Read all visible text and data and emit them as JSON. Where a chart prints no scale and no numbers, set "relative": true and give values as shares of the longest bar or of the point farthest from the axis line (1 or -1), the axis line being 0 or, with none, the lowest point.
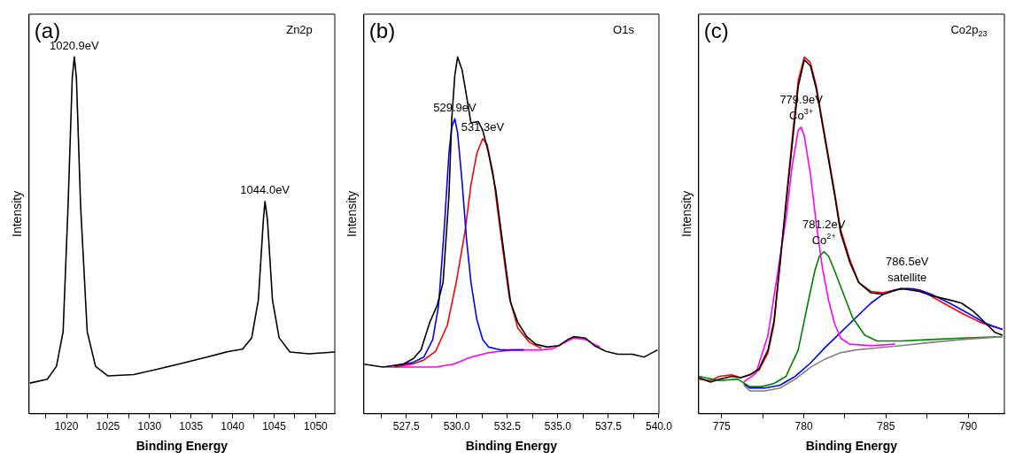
{
  "chart_data": [
    {
      "type": "line",
      "relative": true,
      "title": "Zn2p",
      "xlabel": "Binding Energy",
      "ylabel": "Intensity",
      "tick_labels": "x",
      "grid": false,
      "legend": false,
      "marker": "none",
      "line_style": "solid",
      "xlim": [
        1015.5,
        1052.3
      ],
      "xticks": [
        {
          "value": 1017.5,
          "label": null
        },
        1020,
        {
          "value": 1022.5,
          "label": null
        },
        1025,
        {
          "value": 1027.5,
          "label": null
        },
        1030,
        {
          "value": 1032.5,
          "label": null
        },
        1035,
        {
          "value": 1037.5,
          "label": null
        },
        1040,
        {
          "value": 1042.5,
          "label": null
        },
        1045,
        {
          "value": 1047.5,
          "label": null
        },
        1050
      ],
      "annotations": [
        "(a)",
        {
          "text": "1020.9eV",
          "x": 1020.95,
          "y": 1.0
        },
        {
          "text": "1044.0eV",
          "x": 1043.9,
          "y": 0.595
        }
      ],
      "series": [
        {
          "color": "#000000",
          "x": [
            1015.6,
            1017.7,
            1018.8,
            1019.6,
            1020.2,
            1020.7,
            1020.95,
            1021.2,
            1021.7,
            1022.5,
            1023.5,
            1025.0,
            1028.1,
            1030.8,
            1033.8,
            1036.9,
            1039.6,
            1041.2,
            1042.3,
            1043.1,
            1043.7,
            1043.9,
            1044.2,
            1044.8,
            1045.6,
            1046.9,
            1049.2,
            1052.3
          ],
          "values": [
            0.086,
            0.097,
            0.133,
            0.23,
            0.586,
            0.942,
            1.0,
            0.942,
            0.586,
            0.23,
            0.133,
            0.106,
            0.11,
            0.124,
            0.141,
            0.159,
            0.175,
            0.181,
            0.213,
            0.319,
            0.542,
            0.595,
            0.542,
            0.319,
            0.213,
            0.173,
            0.168,
            0.173
          ]
        }
      ]
    },
    {
      "type": "line",
      "relative": true,
      "title": "O1s",
      "xlabel": "Binding Energy",
      "ylabel": "Intensity",
      "tick_labels": "x",
      "grid": false,
      "legend": false,
      "marker": "none",
      "line_style": "solid",
      "xlim": [
        525.4,
        540
      ],
      "xticks": [
        {
          "value": 526.25,
          "label": null
        },
        {
          "value": 527.5,
          "label": "527.5"
        },
        {
          "value": 528.75,
          "label": null
        },
        {
          "value": 530,
          "label": "530.0"
        },
        {
          "value": 531.25,
          "label": null
        },
        {
          "value": 532.5,
          "label": "532.5"
        },
        {
          "value": 533.75,
          "label": null
        },
        {
          "value": 535,
          "label": "535.0"
        },
        {
          "value": 536.25,
          "label": null
        },
        {
          "value": 537.5,
          "label": "537.5"
        },
        {
          "value": 538.75,
          "label": null
        },
        {
          "value": 540,
          "label": "540.0"
        }
      ],
      "annotations": [
        "(b)",
        {
          "text": "529.9eV",
          "x": 529.9,
          "y": 0.827
        },
        {
          "text": "531.3eV",
          "x": 531.28,
          "y": 0.771
        }
      ],
      "series": [
        {
          "color": "#000000",
          "x": [
            525.42,
            526.34,
            527.35,
            527.86,
            528.23,
            528.66,
            529.03,
            529.32,
            529.61,
            529.75,
            529.9,
            530.04,
            530.26,
            530.48,
            530.7,
            531.06,
            531.28,
            531.57,
            531.93,
            532.3,
            532.66,
            533.02,
            533.46,
            533.9,
            534.48,
            535.06,
            535.49,
            535.78,
            536.37,
            536.8,
            537.38,
            537.97,
            538.69,
            539.27,
            539.93
          ],
          "values": [
            0.139,
            0.131,
            0.139,
            0.155,
            0.179,
            0.256,
            0.304,
            0.368,
            0.61,
            0.827,
            0.948,
            1.0,
            0.964,
            0.891,
            0.815,
            0.819,
            0.795,
            0.73,
            0.626,
            0.465,
            0.312,
            0.256,
            0.216,
            0.195,
            0.187,
            0.191,
            0.208,
            0.216,
            0.212,
            0.191,
            0.175,
            0.167,
            0.167,
            0.159,
            0.179
          ]
        },
        {
          "color": "#0000ff",
          "x": [
            526.92,
            527.79,
            528.37,
            528.81,
            529.1,
            529.39,
            529.61,
            529.75,
            529.9,
            530.04,
            530.26,
            530.48,
            530.7,
            530.99,
            531.28,
            531.57,
            532.15,
            533.31
          ],
          "values": [
            0.135,
            0.143,
            0.159,
            0.208,
            0.304,
            0.529,
            0.73,
            0.803,
            0.827,
            0.787,
            0.65,
            0.489,
            0.368,
            0.264,
            0.208,
            0.187,
            0.179,
            0.179
          ]
        },
        {
          "color": "#ff0000",
          "x": [
            526.92,
            527.79,
            528.37,
            528.95,
            529.53,
            529.97,
            530.41,
            530.7,
            530.99,
            531.28,
            531.5,
            531.79,
            532.15,
            532.59,
            533.02,
            533.6,
            534.19
          ],
          "values": [
            0.131,
            0.139,
            0.151,
            0.175,
            0.248,
            0.368,
            0.513,
            0.642,
            0.73,
            0.771,
            0.755,
            0.674,
            0.513,
            0.328,
            0.24,
            0.2,
            0.183
          ]
        },
        {
          "color": "#ff00ff",
          "x": [
            526.48,
            527.65,
            528.95,
            529.83,
            530.7,
            531.57,
            532.73,
            534.19,
            534.77,
            535.35,
            535.78,
            536.37,
            536.8,
            537.09
          ],
          "values": [
            0.131,
            0.131,
            0.131,
            0.139,
            0.159,
            0.171,
            0.179,
            0.179,
            0.183,
            0.2,
            0.212,
            0.208,
            0.195,
            0.187
          ]
        }
      ]
    },
    {
      "type": "line",
      "relative": true,
      "title": "Co2p$_{23}$",
      "xlabel": "Binding Energy",
      "ylabel": "Intensity",
      "tick_labels": "x",
      "grid": false,
      "legend": false,
      "marker": "none",
      "line_style": "solid",
      "xlim": [
        773.6,
        792.2
      ],
      "xticks": [
        775,
        {
          "value": 777.5,
          "label": null
        },
        780,
        {
          "value": 782.5,
          "label": null
        },
        785,
        {
          "value": 787.5,
          "label": null
        },
        790
      ],
      "annotations": [
        "(c)",
        {
          "text": "779.9eV\nCo$^{3+}$",
          "x": 779.84,
          "y": 0.803
        },
        {
          "text": "781.2eV\nCo$^{2+}$",
          "x": 781.22,
          "y": 0.454
        },
        {
          "text": "786.5eV\nsatellite",
          "x": 786.29,
          "y": 0.351
        }
      ],
      "series": [
        {
          "color": "#808080",
          "x": [
            776.34,
            776.71,
            777.63,
            778.55,
            779.48,
            780.4,
            781.32,
            782.24,
            783.16,
            784.08,
            785.92,
            787.76,
            789.6,
            792.09
          ],
          "values": [
            0.08,
            0.064,
            0.064,
            0.072,
            0.097,
            0.13,
            0.154,
            0.171,
            0.179,
            0.183,
            0.191,
            0.2,
            0.208,
            0.216
          ]
        },
        {
          "color": "#000000",
          "x": [
            773.62,
            774.32,
            774.87,
            775.61,
            776.16,
            776.71,
            777.27,
            777.82,
            778.19,
            778.55,
            778.92,
            779.29,
            779.66,
            780.03,
            780.4,
            780.76,
            781.13,
            781.5,
            781.87,
            782.24,
            782.79,
            783.34,
            784.08,
            784.82,
            785.92,
            787.03,
            787.76,
            788.87,
            789.6,
            790.34,
            791.08,
            791.63,
            792.09
          ],
          "values": [
            0.101,
            0.089,
            0.097,
            0.105,
            0.101,
            0.109,
            0.126,
            0.179,
            0.261,
            0.425,
            0.589,
            0.754,
            0.918,
            0.992,
            0.975,
            0.91,
            0.811,
            0.713,
            0.614,
            0.507,
            0.425,
            0.368,
            0.339,
            0.335,
            0.351,
            0.343,
            0.331,
            0.319,
            0.31,
            0.286,
            0.253,
            0.228,
            0.22
          ]
        },
        {
          "color": "#ff00ff",
          "x": [
            776.34,
            777.08,
            777.82,
            778.37,
            778.92,
            779.29,
            779.66,
            779.84,
            780.03,
            780.4,
            780.76,
            781.13,
            781.5,
            781.87,
            782.24,
            782.79,
            784.08,
            785.55
          ],
          "values": [
            0.089,
            0.113,
            0.22,
            0.384,
            0.548,
            0.696,
            0.795,
            0.803,
            0.778,
            0.672,
            0.532,
            0.409,
            0.319,
            0.253,
            0.212,
            0.195,
            0.191,
            0.195
          ]
        },
        {
          "color": "#008000",
          "x": [
            773.62,
            774.87,
            775.98,
            776.71,
            777.45,
            778.19,
            778.92,
            779.66,
            780.21,
            780.67,
            780.95,
            781.22,
            781.5,
            781.87,
            782.42,
            782.97,
            783.71,
            784.45,
            785.92,
            787.76,
            789.6,
            792.09
          ],
          "values": [
            0.105,
            0.093,
            0.097,
            0.076,
            0.076,
            0.085,
            0.105,
            0.179,
            0.302,
            0.401,
            0.442,
            0.454,
            0.442,
            0.401,
            0.335,
            0.269,
            0.22,
            0.204,
            0.204,
            0.208,
            0.212,
            0.216
          ]
        },
        {
          "color": "#0000ff",
          "x": [
            776.34,
            776.71,
            777.63,
            778.55,
            779.48,
            780.4,
            781.32,
            782.24,
            783.16,
            784.08,
            784.82,
            785.55,
            786.29,
            787.03,
            787.76,
            788.87,
            789.97,
            791.08,
            792.09
          ],
          "values": [
            0.085,
            0.072,
            0.072,
            0.08,
            0.105,
            0.142,
            0.187,
            0.228,
            0.269,
            0.31,
            0.335,
            0.347,
            0.351,
            0.347,
            0.335,
            0.31,
            0.282,
            0.253,
            0.236
          ]
        },
        {
          "color": "#ff0000",
          "x": [
            773.62,
            774.32,
            774.87,
            775.61,
            776.16,
            776.71,
            777.27,
            777.82,
            778.19,
            778.55,
            778.92,
            779.29,
            779.66,
            780.03,
            780.4,
            780.76,
            781.13,
            781.5,
            781.87,
            782.24,
            782.79,
            783.34,
            784.08,
            784.82,
            785.92,
            786.66,
            787.39,
            788.5,
            789.6,
            790.71,
            791.45,
            792.09
          ],
          "values": [
            0.097,
            0.093,
            0.105,
            0.109,
            0.101,
            0.109,
            0.122,
            0.171,
            0.253,
            0.417,
            0.598,
            0.77,
            0.934,
            1.0,
            0.984,
            0.918,
            0.819,
            0.721,
            0.622,
            0.516,
            0.433,
            0.368,
            0.343,
            0.339,
            0.351,
            0.351,
            0.339,
            0.31,
            0.282,
            0.257,
            0.245,
            0.236
          ]
        }
      ]
    }
  ]
}
